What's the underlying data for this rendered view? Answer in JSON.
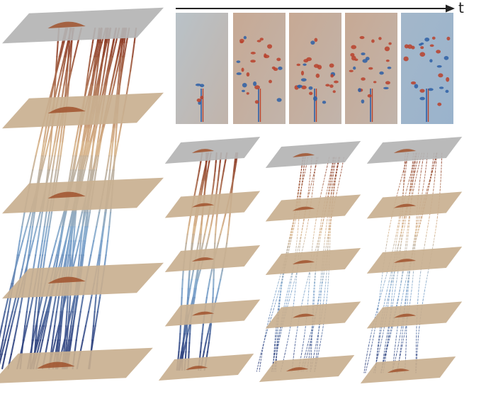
{
  "time_axis": {
    "label": "t"
  },
  "snapshot_count": 5,
  "stacks": [
    {
      "id": "large",
      "planes": 5
    },
    {
      "id": "small-1",
      "planes": 5
    },
    {
      "id": "small-2",
      "planes": 5
    },
    {
      "id": "small-3",
      "planes": 5
    }
  ],
  "colors": {
    "field_bg": "#b9c2c8",
    "field_warm": "#d98a55",
    "field_cool": "#7aa3cf",
    "dot_red": "#b8412c",
    "dot_blue": "#2d5fa6",
    "plane_gray": "#b4b4b4",
    "plane_tan": "#c9b090",
    "bump": "#a0522d",
    "tube_top": "#8b3a24",
    "tube_mid": "#d8b48a",
    "tube_lowmid": "#7fa8d0",
    "tube_bottom": "#1f2d6e"
  }
}
